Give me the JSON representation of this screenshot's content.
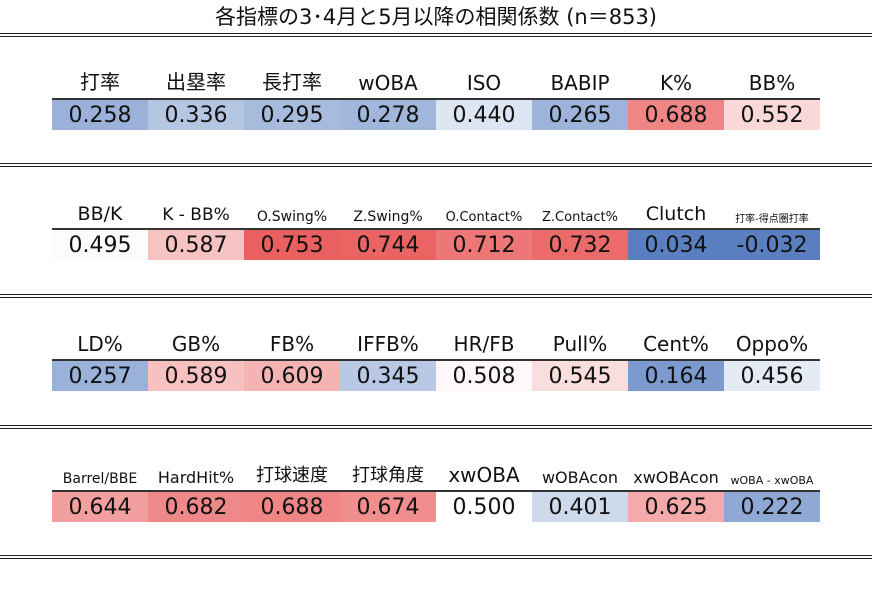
{
  "title": "各指標の3･4月と5月以降の相関係数 (n＝853)",
  "colors": {
    "low": "#5a7fc0",
    "mid": "#ffffff",
    "high": "#e95b5b"
  },
  "chart_data": {
    "type": "table",
    "title": "各指標の3･4月と5月以降の相関係数 (n＝853)",
    "color_scale": "diverging: blue (low) - white (~0.5) - red (high)",
    "groups": [
      {
        "columns": [
          "打率",
          "出塁率",
          "長打率",
          "wOBA",
          "ISO",
          "BABIP",
          "K%",
          "BB%"
        ],
        "values": [
          0.258,
          0.336,
          0.295,
          0.278,
          0.44,
          0.265,
          0.688,
          0.552
        ],
        "labels": [
          "0.258",
          "0.336",
          "0.295",
          "0.278",
          "0.440",
          "0.265",
          "0.688",
          "0.552"
        ]
      },
      {
        "columns": [
          "BB/K",
          "K - BB%",
          "O.Swing%",
          "Z.Swing%",
          "O.Contact%",
          "Z.Contact%",
          "Clutch",
          "打率-得点圏打率"
        ],
        "values": [
          0.495,
          0.587,
          0.753,
          0.744,
          0.712,
          0.732,
          0.034,
          -0.032
        ],
        "labels": [
          "0.495",
          "0.587",
          "0.753",
          "0.744",
          "0.712",
          "0.732",
          "0.034",
          "-0.032"
        ]
      },
      {
        "columns": [
          "LD%",
          "GB%",
          "FB%",
          "IFFB%",
          "HR/FB",
          "Pull%",
          "Cent%",
          "Oppo%"
        ],
        "values": [
          0.257,
          0.589,
          0.609,
          0.345,
          0.508,
          0.545,
          0.164,
          0.456
        ],
        "labels": [
          "0.257",
          "0.589",
          "0.609",
          "0.345",
          "0.508",
          "0.545",
          "0.164",
          "0.456"
        ]
      },
      {
        "columns": [
          "Barrel/BBE",
          "HardHit%",
          "打球速度",
          "打球角度",
          "xwOBA",
          "wOBAcon",
          "xwOBAcon",
          "wOBA - xwOBA"
        ],
        "values": [
          0.644,
          0.682,
          0.688,
          0.674,
          0.5,
          0.401,
          0.625,
          0.222
        ],
        "labels": [
          "0.644",
          "0.682",
          "0.688",
          "0.674",
          "0.500",
          "0.401",
          "0.625",
          "0.222"
        ]
      }
    ]
  }
}
